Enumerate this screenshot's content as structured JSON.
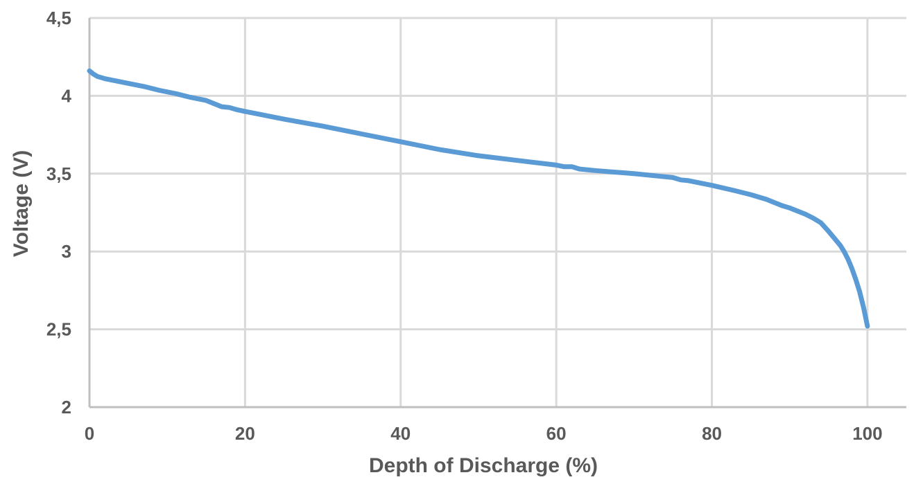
{
  "chart_data": {
    "type": "line",
    "title": "",
    "xlabel": "Depth of Discharge (%)",
    "ylabel": "Voltage (V)",
    "xlim": [
      0,
      105
    ],
    "ylim": [
      2,
      4.5
    ],
    "x_ticks": [
      0,
      20,
      40,
      60,
      80,
      100
    ],
    "y_ticks": [
      2,
      2.5,
      3,
      3.5,
      4,
      4.5
    ],
    "x_tick_labels": [
      "0",
      "20",
      "40",
      "60",
      "80",
      "100"
    ],
    "y_tick_labels": [
      "2",
      "2,5",
      "3",
      "3,5",
      "4",
      "4,5"
    ],
    "grid": true,
    "legend": "none",
    "series": [
      {
        "color": "#5B9BD5",
        "x": [
          0,
          0.5,
          1,
          2,
          3,
          5,
          7,
          9,
          11,
          13,
          15,
          16,
          17,
          18,
          19,
          20,
          25,
          30,
          35,
          40,
          45,
          50,
          55,
          60,
          61,
          62,
          63,
          65,
          70,
          74,
          75,
          76,
          77,
          78,
          80,
          83,
          85,
          87,
          88,
          89,
          90,
          91,
          92,
          93,
          94,
          95,
          96,
          96.5,
          97,
          97.5,
          98,
          98.5,
          99,
          99.5,
          100
        ],
        "y": [
          4.16,
          4.14,
          4.125,
          4.11,
          4.1,
          4.08,
          4.06,
          4.035,
          4.015,
          3.99,
          3.97,
          3.95,
          3.93,
          3.925,
          3.91,
          3.9,
          3.85,
          3.805,
          3.755,
          3.705,
          3.655,
          3.615,
          3.585,
          3.555,
          3.545,
          3.545,
          3.53,
          3.52,
          3.5,
          3.48,
          3.475,
          3.46,
          3.455,
          3.445,
          3.425,
          3.39,
          3.365,
          3.335,
          3.315,
          3.295,
          3.28,
          3.26,
          3.24,
          3.215,
          3.185,
          3.13,
          3.07,
          3.04,
          3.0,
          2.95,
          2.89,
          2.82,
          2.74,
          2.64,
          2.52
        ]
      }
    ]
  }
}
